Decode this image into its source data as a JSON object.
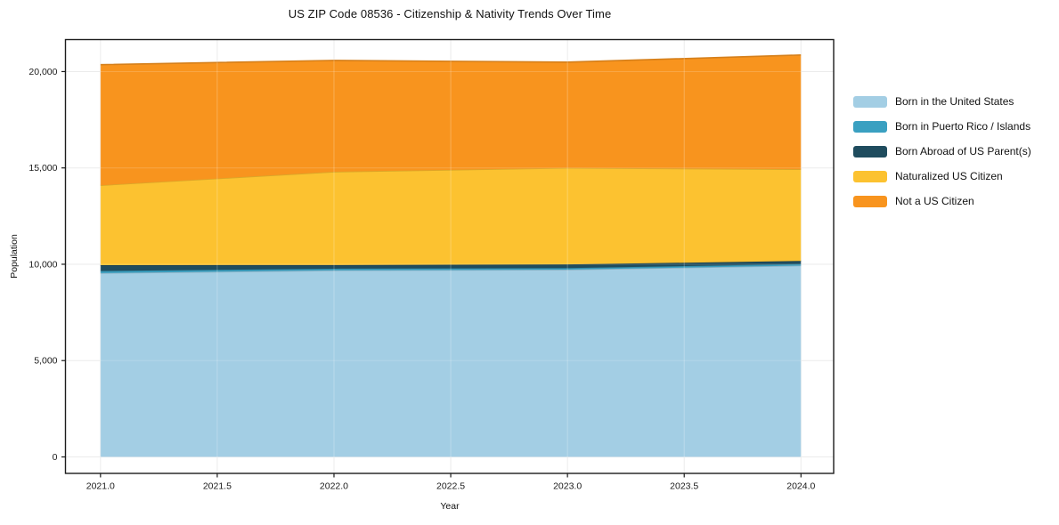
{
  "chart_data": {
    "type": "area",
    "stacked": true,
    "title": "US ZIP Code 08536 - Citizenship & Nativity Trends Over Time",
    "xlabel": "Year",
    "ylabel": "Population",
    "x": [
      2021,
      2022,
      2023,
      2024
    ],
    "series": [
      {
        "name": "Born in the United States",
        "color": "#a3cee4",
        "values": [
          9540,
          9680,
          9720,
          9930
        ]
      },
      {
        "name": "Born in Puerto Rico / Islands",
        "color": "#3aa0c1",
        "values": [
          110,
          90,
          80,
          80
        ]
      },
      {
        "name": "Born Abroad of US Parent(s)",
        "color": "#1f4c5e",
        "values": [
          300,
          190,
          190,
          160
        ]
      },
      {
        "name": "Naturalized US Citizen",
        "color": "#fcc230",
        "values": [
          4150,
          4840,
          5010,
          4760
        ]
      },
      {
        "name": "Not a US Citizen",
        "color": "#f8941e",
        "values": [
          6260,
          5780,
          5490,
          5930
        ]
      }
    ],
    "totals": [
      20360,
      20580,
      20490,
      20860
    ],
    "xticks": [
      2021.0,
      2021.5,
      2022.0,
      2022.5,
      2023.0,
      2023.5,
      2024.0
    ],
    "xtick_labels": [
      "2021.0",
      "2021.5",
      "2022.0",
      "2022.5",
      "2023.0",
      "2023.5",
      "2024.0"
    ],
    "yticks": [
      0,
      5000,
      10000,
      15000,
      20000
    ],
    "ytick_labels": [
      "0",
      "5,000",
      "10,000",
      "15,000",
      "20,000"
    ],
    "xlim": [
      2020.85,
      2024.14
    ],
    "ylim": [
      -855,
      21660
    ],
    "grid": true,
    "grid_color": "#e7e7e7",
    "frame_color": "#1c1c1c",
    "legend_position": "right"
  }
}
